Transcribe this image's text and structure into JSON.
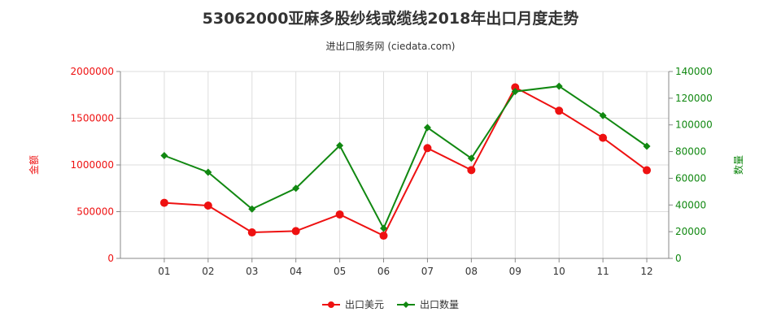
{
  "title": "53062000亚麻多股纱线或缆线2018年出口月度走势",
  "subtitle": "进出口服务网 (ciedata.com)",
  "chart_data": {
    "type": "line",
    "categories": [
      "01",
      "02",
      "03",
      "04",
      "05",
      "06",
      "07",
      "08",
      "09",
      "10",
      "11",
      "12"
    ],
    "series": [
      {
        "name": "出口美元",
        "axis": "left",
        "color": "#ee1111",
        "values": [
          595000,
          565000,
          278000,
          292000,
          470000,
          243000,
          1180000,
          945000,
          1830000,
          1580000,
          1290000,
          943000
        ]
      },
      {
        "name": "出口数量",
        "axis": "right",
        "color": "#118811",
        "values": [
          77000,
          64500,
          37000,
          52500,
          84500,
          22500,
          98000,
          75000,
          125000,
          129000,
          107000,
          84000
        ]
      }
    ],
    "ylabel_left": "金额",
    "ylabel_right": "数量",
    "ylim_left": [
      0,
      2000000
    ],
    "ylim_right": [
      0,
      140000
    ],
    "yticks_left": [
      "0",
      "500000",
      "1000000",
      "1500000",
      "2000000"
    ],
    "yticks_right": [
      "0",
      "20000",
      "40000",
      "60000",
      "80000",
      "100000",
      "120000",
      "140000"
    ],
    "grid": true,
    "legend": "bottom-center"
  }
}
